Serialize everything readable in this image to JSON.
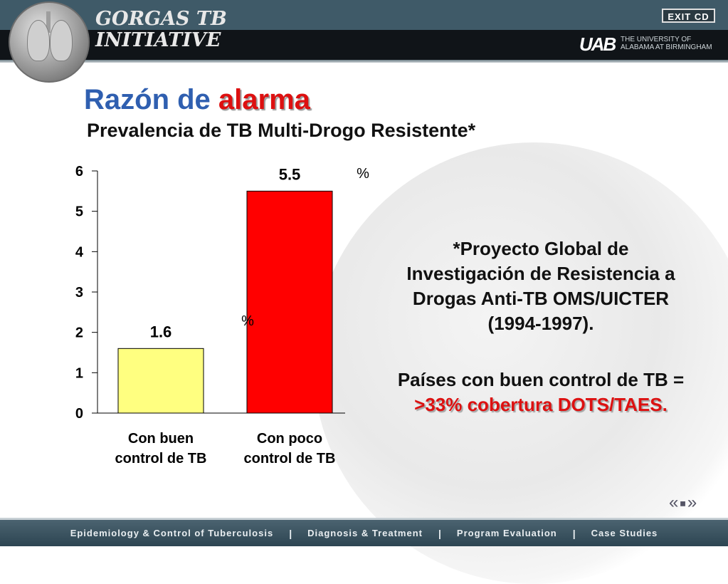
{
  "header": {
    "brand_line1": "GORGAS TB",
    "brand_line2": "INITIATIVE",
    "exit_label": "EXIT CD",
    "uab_logo": "UAB",
    "uab_line1": "THE UNIVERSITY OF",
    "uab_line2": "ALABAMA AT BIRMINGHAM"
  },
  "slide": {
    "title_main": "Razón de ",
    "title_accent": "alarma",
    "subtitle": "Prevalencia de TB Multi-Drogo Resistente*",
    "note_lines": [
      "*Proyecto Global de",
      "Investigación de Resistencia a",
      "Drogas Anti-TB OMS/UICTER",
      "(1994-1997)."
    ],
    "note2_line1": "Países con buen control de TB =",
    "note2_line2": ">33% cobertura DOTS/TAES."
  },
  "chart_data": {
    "type": "bar",
    "categories": [
      "Con buen control de TB",
      "Con poco control de TB"
    ],
    "category_lines": [
      [
        "Con buen",
        "control de TB"
      ],
      [
        "Con poco",
        "control de TB"
      ]
    ],
    "values": [
      1.6,
      5.5
    ],
    "value_labels": [
      "1.6",
      "5.5"
    ],
    "bar_colors": [
      "#ffff80",
      "#ff0000"
    ],
    "ylim": [
      0,
      6
    ],
    "yticks": [
      0,
      1,
      2,
      3,
      4,
      5,
      6
    ],
    "annotations": [
      "%",
      "%"
    ],
    "title": "",
    "xlabel": "",
    "ylabel": ""
  },
  "nav": {
    "prev": "«",
    "home": "■",
    "next": "»"
  },
  "footer": {
    "items": [
      "Epidemiology & Control of Tuberculosis",
      "Diagnosis & Treatment",
      "Program Evaluation",
      "Case Studies"
    ],
    "separator": "|"
  }
}
